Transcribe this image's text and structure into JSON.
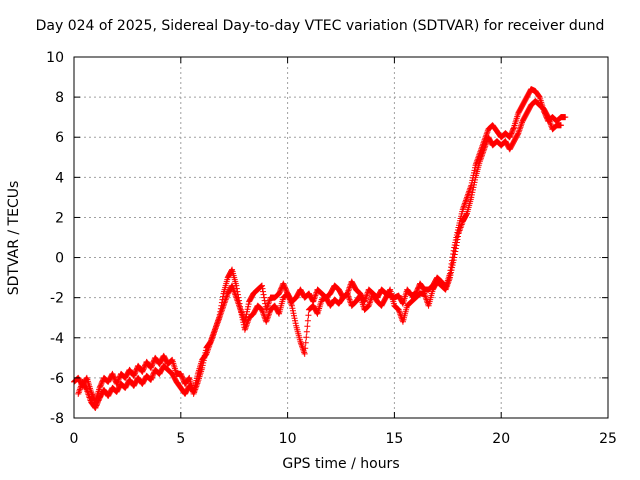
{
  "chart_data": {
    "type": "scatter",
    "title": "Day 024 of 2025, Sidereal Day-to-day VTEC variation (SDTVAR) for receiver dund",
    "xlabel": "GPS time / hours",
    "ylabel": "SDTVAR / TECUs",
    "xlim": [
      0,
      25
    ],
    "ylim": [
      -8,
      10
    ],
    "xticks": [
      0,
      5,
      10,
      15,
      20,
      25
    ],
    "yticks": [
      -8,
      -6,
      -4,
      -2,
      0,
      2,
      4,
      6,
      8,
      10
    ],
    "grid": true,
    "marker": "+",
    "color": "#ff0000",
    "series": [
      {
        "x": [
          0.0,
          0.2,
          0.4,
          0.6,
          0.8,
          1.0,
          1.2,
          1.4,
          1.6,
          1.8,
          2.0,
          2.2,
          2.4,
          2.6,
          2.8,
          3.0,
          3.2,
          3.4,
          3.6,
          3.8,
          4.0,
          4.2,
          4.4,
          4.6,
          4.8,
          5.0,
          5.2,
          5.4,
          5.6,
          5.8,
          6.0,
          6.2,
          6.4,
          6.6,
          6.8,
          7.0,
          7.2,
          7.4,
          7.6,
          7.8,
          8.0,
          8.2,
          8.4,
          8.6,
          8.8,
          9.0,
          9.2,
          9.4,
          9.6,
          9.8,
          10.0,
          10.2,
          10.4,
          10.6,
          10.8,
          11.0,
          11.2,
          11.4,
          11.6,
          11.8,
          12.0,
          12.2,
          12.4,
          12.6,
          12.8,
          13.0,
          13.2,
          13.4,
          13.6,
          13.8,
          14.0,
          14.2,
          14.4,
          14.6,
          14.8,
          15.0,
          15.2,
          15.4,
          15.6,
          15.8,
          16.0,
          16.2,
          16.4,
          16.6,
          16.8,
          17.0,
          17.2,
          17.4,
          17.6,
          17.8,
          18.0,
          18.2,
          18.4,
          18.6,
          18.8,
          19.0,
          19.2,
          19.4,
          19.6,
          19.8,
          20.0,
          20.2,
          20.4,
          20.6,
          20.8,
          21.0,
          21.2,
          21.4,
          21.6,
          21.8,
          22.0,
          22.2,
          22.4,
          22.6,
          22.8,
          23.0
        ],
        "y": [
          -6.2,
          -6.0,
          -6.4,
          -6.0,
          -6.7,
          -7.2,
          -6.5,
          -6.0,
          -6.2,
          -5.8,
          -6.3,
          -5.8,
          -6.0,
          -5.6,
          -5.9,
          -5.4,
          -5.7,
          -5.2,
          -5.5,
          -5.0,
          -5.3,
          -4.9,
          -5.3,
          -5.1,
          -5.8,
          -5.8,
          -6.3,
          -6.0,
          -6.8,
          -6.2,
          -5.5,
          -4.5,
          -4.2,
          -3.6,
          -3.0,
          -1.8,
          -1.0,
          -0.6,
          -1.4,
          -2.6,
          -3.2,
          -2.2,
          -1.8,
          -1.6,
          -1.4,
          -2.6,
          -2.0,
          -2.0,
          -1.8,
          -1.3,
          -1.8,
          -2.2,
          -2.0,
          -1.6,
          -2.0,
          -1.8,
          -2.2,
          -1.6,
          -1.8,
          -2.0,
          -1.8,
          -1.4,
          -1.6,
          -2.0,
          -1.8,
          -1.2,
          -1.6,
          -1.8,
          -2.2,
          -1.6,
          -1.8,
          -2.0,
          -1.6,
          -1.8,
          -1.9,
          -2.0,
          -1.9,
          -2.3,
          -1.6,
          -1.9,
          -1.8,
          -1.3,
          -1.6,
          -1.6,
          -1.4,
          -1.0,
          -1.2,
          -1.5,
          -0.8,
          0.5,
          1.5,
          2.4,
          3.0,
          3.6,
          4.6,
          5.2,
          5.8,
          6.4,
          6.6,
          6.3,
          6.0,
          6.2,
          6.0,
          6.5,
          7.2,
          7.6,
          8.0,
          8.4,
          8.3,
          8.0,
          7.3,
          6.8,
          7.0,
          6.8,
          7.0,
          7.0
        ]
      },
      {
        "x": [
          0.2,
          0.4,
          0.6,
          0.8,
          1.0,
          1.2,
          1.4,
          1.6,
          1.8,
          2.0,
          2.2,
          2.4,
          2.6,
          2.8,
          3.0,
          3.2,
          3.4,
          3.6,
          3.8,
          4.0,
          4.2,
          4.4,
          4.6,
          4.8,
          5.0,
          5.2,
          5.4,
          5.6,
          5.8,
          6.0,
          6.2,
          6.4,
          6.6,
          6.8,
          7.0,
          7.2,
          7.4,
          7.6,
          7.8,
          8.0,
          8.2,
          8.4,
          8.6,
          8.8,
          9.0,
          9.2,
          9.4,
          9.6,
          9.8,
          10.0,
          10.2,
          10.4,
          10.6,
          10.8,
          11.0,
          11.2,
          11.4,
          11.6,
          11.8,
          12.0,
          12.2,
          12.4,
          12.6,
          12.8,
          13.0,
          13.2,
          13.4,
          13.6,
          13.8,
          14.0,
          14.2,
          14.4,
          14.6,
          14.8,
          15.0,
          15.2,
          15.4,
          15.6,
          15.8,
          16.0,
          16.2,
          16.4,
          16.6,
          16.8,
          17.0,
          17.2,
          17.4,
          17.6,
          17.8,
          18.0,
          18.2,
          18.4,
          18.6,
          18.8,
          19.0,
          19.2,
          19.4,
          19.6,
          19.8,
          20.0,
          20.2,
          20.4,
          20.6,
          20.8,
          21.0,
          21.2,
          21.4,
          21.6,
          21.8,
          22.0,
          22.2,
          22.4,
          22.6,
          22.8
        ],
        "y": [
          -6.8,
          -6.2,
          -6.6,
          -7.2,
          -7.5,
          -7.0,
          -6.6,
          -6.9,
          -6.5,
          -6.7,
          -6.3,
          -6.5,
          -6.1,
          -6.4,
          -6.0,
          -6.3,
          -5.9,
          -6.1,
          -5.6,
          -5.8,
          -5.4,
          -5.6,
          -5.8,
          -6.2,
          -6.5,
          -6.8,
          -6.4,
          -6.7,
          -5.8,
          -5.1,
          -4.8,
          -4.2,
          -3.6,
          -3.0,
          -2.4,
          -1.8,
          -1.4,
          -2.0,
          -2.6,
          -3.6,
          -3.0,
          -2.8,
          -2.4,
          -2.6,
          -3.2,
          -2.6,
          -2.4,
          -2.8,
          -2.0,
          -1.8,
          -2.4,
          -3.4,
          -4.2,
          -4.8,
          -2.6,
          -2.4,
          -2.8,
          -2.1,
          -2.0,
          -2.4,
          -2.1,
          -2.3,
          -2.0,
          -1.8,
          -2.4,
          -2.2,
          -1.9,
          -2.6,
          -2.4,
          -1.8,
          -2.2,
          -2.4,
          -2.0,
          -1.6,
          -2.4,
          -2.6,
          -3.2,
          -2.4,
          -2.2,
          -2.0,
          -1.8,
          -1.8,
          -2.4,
          -1.6,
          -1.2,
          -1.4,
          -1.6,
          -1.0,
          0.0,
          1.2,
          1.8,
          2.2,
          3.0,
          4.0,
          4.8,
          5.4,
          6.0,
          5.6,
          5.8,
          5.6,
          5.8,
          5.4,
          5.8,
          6.2,
          6.8,
          7.2,
          7.6,
          7.8,
          7.6,
          7.4,
          7.0,
          6.4,
          6.6,
          6.6
        ]
      }
    ]
  }
}
